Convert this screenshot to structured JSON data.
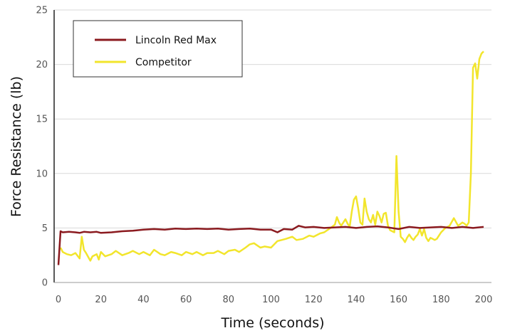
{
  "chart_data": {
    "type": "line",
    "title": "",
    "xlabel": "Time (seconds)",
    "ylabel": "Force Resistance (lb)",
    "xlim": [
      0,
      200
    ],
    "ylim": [
      0,
      25
    ],
    "x_ticks": [
      "0",
      "20",
      "40",
      "60",
      "80",
      "100",
      "120",
      "140",
      "160",
      "180",
      "200"
    ],
    "y_ticks": [
      "0",
      "5",
      "10",
      "15",
      "20",
      "25"
    ],
    "grid": "horizontal",
    "legend_position": "top-left",
    "series": [
      {
        "name": "Lincoln Red Max",
        "color": "#8b1a1f",
        "x": [
          0,
          1,
          2,
          5,
          8,
          10,
          12,
          15,
          18,
          20,
          25,
          30,
          35,
          40,
          45,
          50,
          55,
          60,
          65,
          70,
          75,
          80,
          85,
          90,
          95,
          100,
          103,
          106,
          110,
          113,
          116,
          120,
          125,
          130,
          135,
          140,
          145,
          150,
          155,
          160,
          165,
          170,
          175,
          180,
          185,
          190,
          195,
          200
        ],
        "y": [
          1.6,
          4.7,
          4.6,
          4.65,
          4.6,
          4.55,
          4.65,
          4.6,
          4.65,
          4.55,
          4.6,
          4.7,
          4.75,
          4.85,
          4.9,
          4.85,
          4.95,
          4.9,
          4.95,
          4.9,
          4.95,
          4.85,
          4.9,
          4.95,
          4.85,
          4.85,
          4.6,
          4.9,
          4.85,
          5.2,
          5.05,
          5.1,
          5.0,
          5.05,
          5.1,
          5.0,
          5.1,
          5.15,
          5.05,
          4.9,
          5.1,
          5.0,
          5.05,
          5.1,
          5.0,
          5.1,
          5.0,
          5.1
        ]
      },
      {
        "name": "Competitor",
        "color": "#f2e52c",
        "x": [
          1,
          2,
          4,
          6,
          8,
          10,
          11,
          12,
          13,
          15,
          16,
          18,
          19,
          20,
          22,
          25,
          27,
          30,
          33,
          35,
          38,
          40,
          43,
          45,
          48,
          50,
          53,
          55,
          58,
          60,
          63,
          65,
          68,
          70,
          73,
          75,
          78,
          80,
          83,
          85,
          88,
          90,
          92,
          95,
          97,
          100,
          103,
          105,
          107,
          110,
          112,
          115,
          118,
          120,
          123,
          125,
          128,
          130,
          131,
          132,
          133,
          135,
          136,
          137,
          138,
          139,
          140,
          141,
          142,
          143,
          144,
          145,
          146,
          147,
          148,
          149,
          150,
          151,
          152,
          153,
          154,
          155,
          156,
          157,
          158,
          159,
          160,
          161,
          162,
          163,
          164,
          165,
          166,
          167,
          168,
          169,
          170,
          171,
          172,
          173,
          174,
          175,
          176,
          177,
          178,
          179,
          180,
          182,
          184,
          186,
          188,
          190,
          191,
          192,
          193,
          194,
          195,
          196,
          197,
          198,
          199,
          200
        ],
        "y": [
          3.2,
          2.8,
          2.6,
          2.5,
          2.7,
          2.2,
          4.2,
          3.0,
          2.7,
          2.0,
          2.4,
          2.6,
          2.1,
          2.8,
          2.4,
          2.6,
          2.9,
          2.5,
          2.7,
          2.9,
          2.6,
          2.8,
          2.5,
          3.0,
          2.6,
          2.5,
          2.8,
          2.7,
          2.5,
          2.8,
          2.6,
          2.8,
          2.5,
          2.7,
          2.7,
          2.9,
          2.6,
          2.9,
          3.0,
          2.8,
          3.2,
          3.5,
          3.6,
          3.2,
          3.3,
          3.2,
          3.8,
          3.9,
          4.0,
          4.2,
          3.9,
          4.0,
          4.3,
          4.2,
          4.5,
          4.6,
          5.0,
          5.3,
          6.0,
          5.5,
          5.2,
          5.8,
          5.4,
          5.1,
          6.5,
          7.6,
          7.9,
          6.8,
          5.5,
          5.3,
          7.7,
          6.5,
          5.8,
          5.5,
          6.2,
          5.3,
          6.5,
          6.1,
          5.5,
          6.3,
          6.4,
          5.2,
          4.8,
          4.7,
          4.6,
          11.6,
          6.5,
          4.2,
          4.0,
          3.7,
          4.1,
          4.4,
          4.1,
          3.9,
          4.2,
          4.4,
          4.9,
          4.3,
          4.9,
          4.1,
          3.8,
          4.1,
          4.0,
          3.9,
          4.0,
          4.3,
          4.6,
          5.0,
          5.2,
          5.9,
          5.2,
          5.5,
          5.4,
          5.2,
          5.5,
          10.0,
          19.7,
          20.1,
          18.7,
          20.5,
          21.0,
          21.2
        ]
      }
    ]
  }
}
